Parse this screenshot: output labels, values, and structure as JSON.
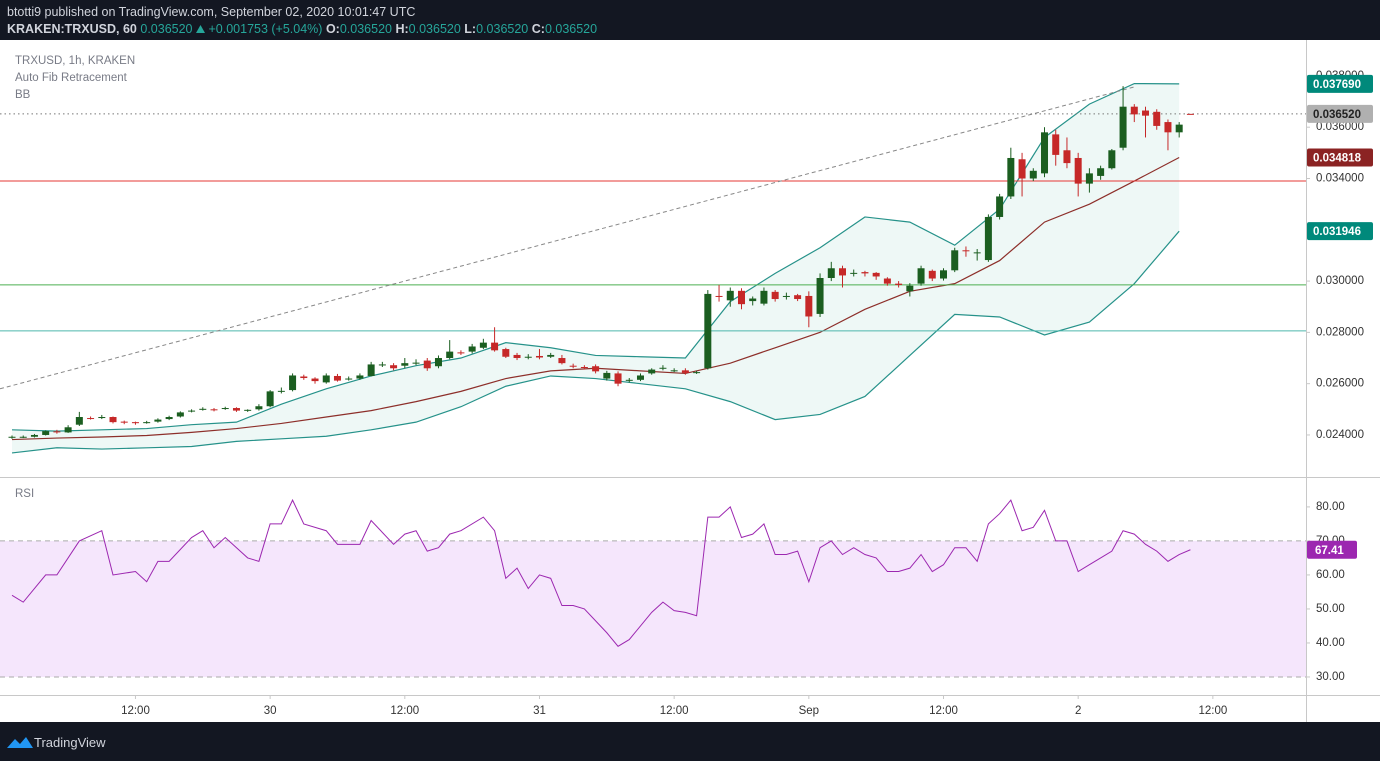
{
  "header": {
    "publisher": "btotti9 published on TradingView.com, September 02, 2020 10:01:47 UTC",
    "symbol": "KRAKEN:TRXUSD, 60",
    "last": "0.036520",
    "change": "+0.001753 (+5.04%)",
    "ohlc": [
      {
        "key": "O:",
        "value": "0.036520"
      },
      {
        "key": "H:",
        "value": "0.036520"
      },
      {
        "key": "L:",
        "value": "0.036520"
      },
      {
        "key": "C:",
        "value": "0.036520"
      }
    ]
  },
  "footer": {
    "brand": "TradingView"
  },
  "chart_data": [
    {
      "type": "candlestick",
      "legend": [
        "TRXUSD, 1h, KRAKEN",
        "Auto Fib Retracement",
        "BB"
      ],
      "up_color": "#1b5e20",
      "down_color": "#c62828",
      "xlim": [
        -1.07,
        115.3
      ],
      "xticks": [
        {
          "value": 11,
          "label": "12:00"
        },
        {
          "value": 23,
          "label": "30"
        },
        {
          "value": 35,
          "label": "12:00"
        },
        {
          "value": 47,
          "label": "31"
        },
        {
          "value": 59,
          "label": "12:00"
        },
        {
          "value": 71,
          "label": "Sep"
        },
        {
          "value": 83,
          "label": "12:00"
        },
        {
          "value": 95,
          "label": "2"
        },
        {
          "value": 107,
          "label": "12:00"
        }
      ],
      "ylim": [
        0.0224,
        0.0394
      ],
      "yticks": [
        {
          "value": 0.024,
          "label": "0.024000"
        },
        {
          "value": 0.026,
          "label": "0.026000"
        },
        {
          "value": 0.028,
          "label": "0.028000"
        },
        {
          "value": 0.03,
          "label": "0.030000"
        },
        {
          "value": 0.034,
          "label": "0.034000"
        },
        {
          "value": 0.036,
          "label": "0.036000"
        },
        {
          "value": 0.038,
          "label": "0.038000"
        }
      ],
      "grid": false,
      "open": [
        0.0239,
        0.02392,
        0.02393,
        0.024,
        0.02414,
        0.0241,
        0.0244,
        0.02466,
        0.02466,
        0.0247,
        0.02452,
        0.0245,
        0.02448,
        0.02452,
        0.02462,
        0.02472,
        0.02492,
        0.02498,
        0.025,
        0.02502,
        0.02505,
        0.02495,
        0.025,
        0.02512,
        0.0257,
        0.02575,
        0.02628,
        0.0262,
        0.02605,
        0.0263,
        0.02618,
        0.0262,
        0.0263,
        0.02672,
        0.02672,
        0.0267,
        0.02678,
        0.0269,
        0.02668,
        0.027,
        0.02722,
        0.02725,
        0.0274,
        0.0276,
        0.02735,
        0.02712,
        0.02702,
        0.02708,
        0.02705,
        0.027,
        0.0267,
        0.02665,
        0.02668,
        0.0262,
        0.0264,
        0.02612,
        0.02615,
        0.0264,
        0.0266,
        0.0265,
        0.02652,
        0.02642,
        0.0266,
        0.02942,
        0.02925,
        0.02962,
        0.02922,
        0.02912,
        0.02958,
        0.0294,
        0.02945,
        0.02942,
        0.02872,
        0.03012,
        0.0305,
        0.0303,
        0.03035,
        0.03032,
        0.0301,
        0.0299,
        0.0296,
        0.0299,
        0.0304,
        0.0301,
        0.03042,
        0.0312,
        0.0311,
        0.03082,
        0.0325,
        0.0333,
        0.03475,
        0.034,
        0.0342,
        0.03572,
        0.0351,
        0.0348,
        0.0338,
        0.0341,
        0.0344,
        0.0352,
        0.0368,
        0.03665,
        0.0366,
        0.0362,
        0.0358,
        0.03652
      ],
      "high": [
        0.02398,
        0.02398,
        0.02404,
        0.02418,
        0.0242,
        0.02438,
        0.0249,
        0.02472,
        0.02478,
        0.02472,
        0.02456,
        0.02452,
        0.02455,
        0.02465,
        0.02475,
        0.02492,
        0.025,
        0.02508,
        0.02505,
        0.0251,
        0.02508,
        0.025,
        0.0252,
        0.02575,
        0.02585,
        0.0264,
        0.02635,
        0.02625,
        0.0264,
        0.02638,
        0.02628,
        0.0264,
        0.02685,
        0.02685,
        0.0268,
        0.027,
        0.02695,
        0.027,
        0.0271,
        0.0277,
        0.0273,
        0.02755,
        0.02775,
        0.0282,
        0.0274,
        0.0272,
        0.02715,
        0.02735,
        0.0272,
        0.02712,
        0.02678,
        0.02672,
        0.02675,
        0.0265,
        0.02648,
        0.02622,
        0.0264,
        0.0266,
        0.02672,
        0.0266,
        0.0266,
        0.0265,
        0.02965,
        0.02985,
        0.02975,
        0.02972,
        0.0294,
        0.02975,
        0.02965,
        0.02955,
        0.0295,
        0.0296,
        0.0303,
        0.03075,
        0.0306,
        0.03045,
        0.0304,
        0.03035,
        0.03015,
        0.03,
        0.02992,
        0.0306,
        0.03045,
        0.0305,
        0.0313,
        0.03135,
        0.03125,
        0.0326,
        0.0334,
        0.0352,
        0.035,
        0.0344,
        0.036,
        0.0359,
        0.0356,
        0.035,
        0.0344,
        0.0345,
        0.03515,
        0.0376,
        0.0369,
        0.0368,
        0.0367,
        0.0363,
        0.0362,
        0.03652
      ],
      "low": [
        0.02385,
        0.02388,
        0.0239,
        0.02398,
        0.02405,
        0.02408,
        0.02435,
        0.0246,
        0.02462,
        0.02445,
        0.02442,
        0.0244,
        0.02444,
        0.02448,
        0.02458,
        0.02468,
        0.02488,
        0.02495,
        0.02492,
        0.02498,
        0.0249,
        0.0249,
        0.02495,
        0.02508,
        0.02562,
        0.0257,
        0.02615,
        0.026,
        0.026,
        0.02608,
        0.02612,
        0.02615,
        0.02628,
        0.02665,
        0.02652,
        0.0266,
        0.02672,
        0.0265,
        0.0266,
        0.02695,
        0.02712,
        0.02718,
        0.02735,
        0.02725,
        0.027,
        0.02692,
        0.02695,
        0.02695,
        0.027,
        0.02675,
        0.0266,
        0.02655,
        0.0264,
        0.02612,
        0.0259,
        0.02605,
        0.0261,
        0.02635,
        0.02652,
        0.02645,
        0.02635,
        0.02638,
        0.02655,
        0.0292,
        0.029,
        0.0289,
        0.02905,
        0.02905,
        0.0292,
        0.02928,
        0.02922,
        0.0282,
        0.0286,
        0.03,
        0.02975,
        0.03018,
        0.03018,
        0.03005,
        0.02982,
        0.02975,
        0.0294,
        0.02982,
        0.03,
        0.03002,
        0.03035,
        0.03095,
        0.0308,
        0.03075,
        0.0324,
        0.0332,
        0.0333,
        0.0339,
        0.03405,
        0.0345,
        0.0344,
        0.0333,
        0.03345,
        0.03395,
        0.03435,
        0.0351,
        0.0362,
        0.0356,
        0.0359,
        0.0351,
        0.0356,
        0.03652
      ],
      "close": [
        0.02393,
        0.02393,
        0.024,
        0.02415,
        0.0241,
        0.0243,
        0.0247,
        0.02465,
        0.0247,
        0.0245,
        0.02448,
        0.02446,
        0.0245,
        0.0246,
        0.0247,
        0.02488,
        0.02495,
        0.02502,
        0.02498,
        0.02505,
        0.02495,
        0.02498,
        0.02512,
        0.0257,
        0.02572,
        0.02632,
        0.02622,
        0.0261,
        0.02632,
        0.02612,
        0.0262,
        0.02632,
        0.02675,
        0.02675,
        0.0266,
        0.0268,
        0.02682,
        0.0266,
        0.027,
        0.02725,
        0.0272,
        0.02745,
        0.0276,
        0.0273,
        0.02705,
        0.027,
        0.02705,
        0.02702,
        0.02712,
        0.0268,
        0.02668,
        0.02662,
        0.02648,
        0.02642,
        0.026,
        0.02615,
        0.02632,
        0.02655,
        0.02662,
        0.02652,
        0.02642,
        0.02645,
        0.0295,
        0.02942,
        0.02962,
        0.0291,
        0.02932,
        0.02962,
        0.0293,
        0.02942,
        0.0293,
        0.02862,
        0.03012,
        0.0305,
        0.03022,
        0.03032,
        0.0303,
        0.03018,
        0.0299,
        0.02985,
        0.02982,
        0.0305,
        0.0301,
        0.03042,
        0.0312,
        0.03118,
        0.03112,
        0.0325,
        0.0333,
        0.0348,
        0.034,
        0.0343,
        0.0358,
        0.03492,
        0.0346,
        0.0338,
        0.0342,
        0.0344,
        0.0351,
        0.0368,
        0.0365,
        0.03645,
        0.03605,
        0.0358,
        0.0361,
        0.03652
      ],
      "bands": {
        "x": [
          0,
          4,
          8,
          12,
          16,
          20,
          24,
          28,
          32,
          36,
          40,
          44,
          48,
          52,
          56,
          60,
          64,
          68,
          72,
          76,
          80,
          84,
          88,
          92,
          96,
          100,
          104
        ],
        "fill": "#eef8f6",
        "upper_color": "#26928a",
        "middle_color": "#8d2f2a",
        "upper": [
          0.0242,
          0.02415,
          0.0242,
          0.02425,
          0.0244,
          0.0245,
          0.0252,
          0.0258,
          0.0263,
          0.0267,
          0.027,
          0.0276,
          0.0274,
          0.0271,
          0.02705,
          0.027,
          0.0292,
          0.0303,
          0.0313,
          0.0325,
          0.0323,
          0.0314,
          0.0328,
          0.0356,
          0.0369,
          0.0377,
          0.03769
        ],
        "middle": [
          0.02382,
          0.02388,
          0.02392,
          0.02398,
          0.0241,
          0.02425,
          0.02445,
          0.0247,
          0.02495,
          0.0253,
          0.0257,
          0.0262,
          0.0265,
          0.0266,
          0.0265,
          0.0264,
          0.0268,
          0.0274,
          0.028,
          0.0289,
          0.0296,
          0.0299,
          0.0308,
          0.0323,
          0.033,
          0.0339,
          0.034818
        ],
        "lower": [
          0.0233,
          0.0235,
          0.02345,
          0.0235,
          0.02355,
          0.02375,
          0.02385,
          0.02395,
          0.0242,
          0.0245,
          0.0251,
          0.0259,
          0.0263,
          0.0262,
          0.026,
          0.0258,
          0.0253,
          0.0246,
          0.0248,
          0.0255,
          0.0271,
          0.0287,
          0.0286,
          0.0279,
          0.0284,
          0.0299,
          0.031946
        ]
      },
      "levels": [
        {
          "value": 0.0339,
          "color": "#e53935"
        },
        {
          "value": 0.02985,
          "color": "#4caf50"
        },
        {
          "value": 0.02806,
          "color": "#4db6ac"
        }
      ],
      "trend": {
        "x": [
          -1.07,
          100
        ],
        "y": [
          0.0258,
          0.03757
        ],
        "color": "#888888"
      },
      "last_line": {
        "value": 0.03652,
        "color": "#777777"
      },
      "price_labels": [
        {
          "value": 0.03769,
          "label": "0.037690",
          "color": "#00897b",
          "text_color": "#ffffff"
        },
        {
          "value": 0.03652,
          "label": "0.036520",
          "color": "#b0b0b0",
          "text_color": "#222222"
        },
        {
          "value": 0.034818,
          "label": "0.034818",
          "color": "#8b2323",
          "text_color": "#ffffff"
        },
        {
          "value": 0.031946,
          "label": "0.031946",
          "color": "#00897b",
          "text_color": "#ffffff"
        }
      ]
    },
    {
      "type": "line",
      "title": "RSI",
      "color": "#9c27b0",
      "band": [
        30,
        70
      ],
      "band_color": "#f5e6fc",
      "xlim": [
        -1.07,
        115.3
      ],
      "ylim": [
        24.7,
        88.5
      ],
      "yticks": [
        {
          "value": 80,
          "label": "80.00"
        },
        {
          "value": 70,
          "label": "70.00"
        },
        {
          "value": 60,
          "label": "60.00"
        },
        {
          "value": 50,
          "label": "50.00"
        },
        {
          "value": 40,
          "label": "40.00"
        },
        {
          "value": 30,
          "label": "30.00"
        }
      ],
      "x": [
        0,
        1,
        3,
        4,
        6,
        8,
        9,
        11,
        12,
        13,
        14,
        16,
        17,
        18,
        19,
        21,
        22,
        23,
        24,
        25,
        26,
        28,
        29,
        31,
        32,
        34,
        35,
        36,
        37,
        38,
        39,
        40,
        42,
        43,
        44,
        45,
        46,
        47,
        48,
        49,
        50,
        51,
        53,
        54,
        55,
        57,
        58,
        59,
        60,
        61,
        62,
        63,
        64,
        65,
        66,
        67,
        68,
        69,
        70,
        71,
        72,
        73,
        74,
        75,
        76,
        77,
        78,
        79,
        80,
        81,
        82,
        83,
        84,
        85,
        86,
        87,
        88,
        89,
        90,
        91,
        92,
        93,
        94,
        95,
        96,
        97,
        98,
        99,
        100,
        101,
        102,
        103,
        104,
        105
      ],
      "values": [
        54,
        52,
        60,
        60,
        70,
        73,
        60,
        61,
        58,
        64,
        64,
        71,
        73,
        68,
        71,
        65,
        64,
        75,
        75,
        82,
        75,
        73,
        69,
        69,
        76,
        69,
        72,
        73,
        67,
        68,
        72,
        73,
        77,
        73,
        59,
        62,
        56,
        60,
        59,
        51,
        51,
        50,
        43,
        39,
        41,
        49,
        52,
        49.5,
        49,
        48,
        77,
        77,
        80,
        71,
        72,
        75,
        66,
        66,
        67,
        58,
        68,
        70,
        66,
        68,
        66,
        65,
        61,
        61,
        62,
        66,
        61,
        63,
        68,
        68,
        64,
        75,
        78,
        82,
        73,
        74,
        79,
        70,
        70,
        61,
        63,
        65,
        67,
        73,
        72,
        69,
        67,
        64,
        66,
        67.41
      ],
      "last_label_color": "#9c27b0"
    }
  ]
}
